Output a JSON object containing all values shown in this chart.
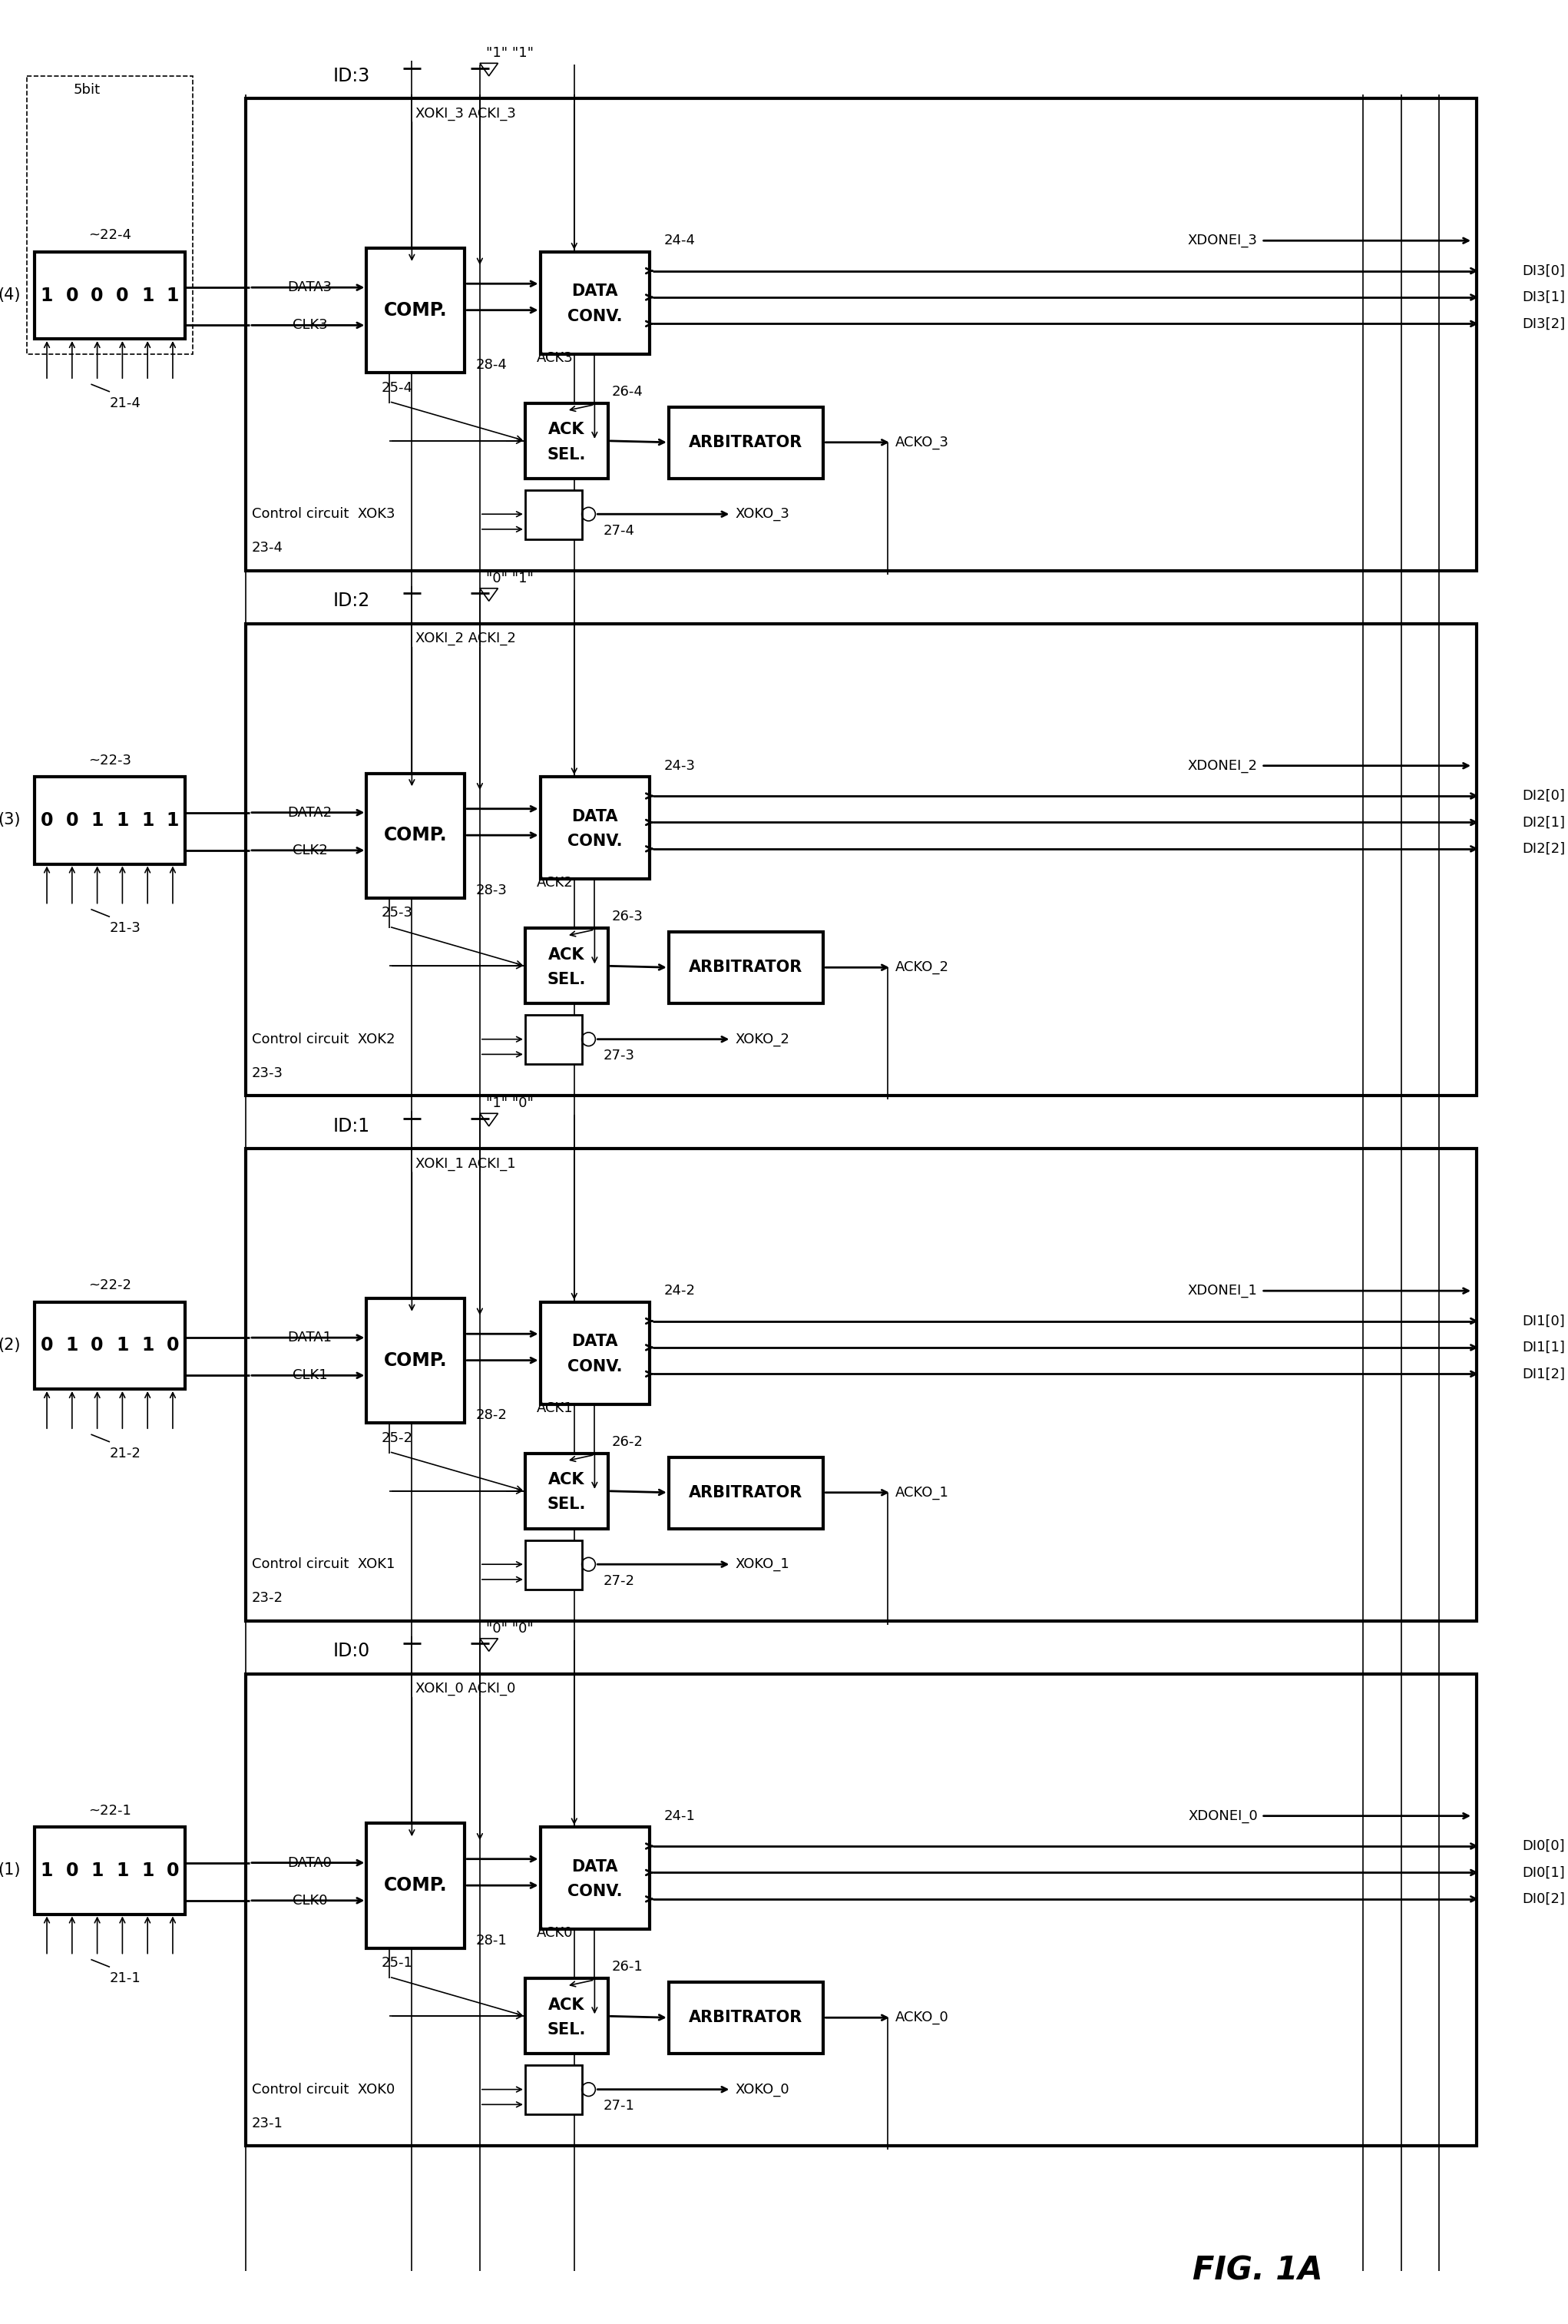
{
  "title": "FIG. 1A",
  "bg_color": "#ffffff",
  "sections": [
    {
      "idx": 3,
      "bits": [
        1,
        0,
        0,
        0,
        1,
        1
      ],
      "id_label": "ID:3",
      "id_bits": "\"1\" \"1\"",
      "data_label": "DATA3",
      "clk_label": "CLK3",
      "xoki_label": "XOKI_3 ACKI_3",
      "xdonei": "XDONEI_3",
      "di": [
        "DI3[0]",
        "DI3[1]",
        "DI3[2]"
      ],
      "acko": "ACKO_3",
      "xoko": "XOKO_3",
      "ack_label": "ACK3",
      "xok_label": "XOK3",
      "xok0_label": "XOKO_3",
      "ref22": "~22-4",
      "ref21": "21-4",
      "ref23": "23-4",
      "ref25": "25-4",
      "ref28": "28-4",
      "ref26": "26-4",
      "ref24": "24-4",
      "ref27": "27-4"
    },
    {
      "idx": 2,
      "bits": [
        0,
        0,
        1,
        1,
        1,
        1
      ],
      "id_label": "ID:2",
      "id_bits": "\"0\" \"1\"",
      "data_label": "DATA2",
      "clk_label": "CLK2",
      "xoki_label": "XOKI_2 ACKI_2",
      "xdonei": "XDONEI_2",
      "di": [
        "DI2[0]",
        "DI2[1]",
        "DI2[2]"
      ],
      "acko": "ACKO_2",
      "xoko": "XOKO_2",
      "ack_label": "ACK2",
      "xok_label": "XOK2",
      "xok0_label": "XOKO_2",
      "ref22": "~22-3",
      "ref21": "21-3",
      "ref23": "23-3",
      "ref25": "25-3",
      "ref28": "28-3",
      "ref26": "26-3",
      "ref24": "24-3",
      "ref27": "27-3"
    },
    {
      "idx": 1,
      "bits": [
        0,
        1,
        0,
        1,
        1,
        0
      ],
      "id_label": "ID:1",
      "id_bits": "\"1\" \"0\"",
      "data_label": "DATA1",
      "clk_label": "CLK1",
      "xoki_label": "XOKI_1 ACKI_1",
      "xdonei": "XDONEI_1",
      "di": [
        "DI1[0]",
        "DI1[1]",
        "DI1[2]"
      ],
      "acko": "ACKO_1",
      "xoko": "XOKO_1",
      "ack_label": "ACK1",
      "xok_label": "XOK1",
      "xok0_label": "XOKO_1",
      "ref22": "~22-2",
      "ref21": "21-2",
      "ref23": "23-2",
      "ref25": "25-2",
      "ref28": "28-2",
      "ref26": "26-2",
      "ref24": "24-2",
      "ref27": "27-2"
    },
    {
      "idx": 0,
      "bits": [
        1,
        0,
        1,
        1,
        1,
        0
      ],
      "id_label": "ID:0",
      "id_bits": "\"0\" \"0\"",
      "data_label": "DATA0",
      "clk_label": "CLK0",
      "xoki_label": "XOKI_0 ACKI_0",
      "xdonei": "XDONEI_0",
      "di": [
        "DI0[0]",
        "DI0[1]",
        "DI0[2]"
      ],
      "acko": "ACKO_0",
      "xoko": "XOKO_0",
      "ack_label": "ACK0",
      "xok_label": "XOK0",
      "xok0_label": "XOKO_0",
      "ref22": "~22-1",
      "ref21": "21-1",
      "ref23": "23-1",
      "ref25": "25-1",
      "ref28": "28-1",
      "ref26": "26-1",
      "ref24": "24-1",
      "ref27": "27-1"
    }
  ]
}
